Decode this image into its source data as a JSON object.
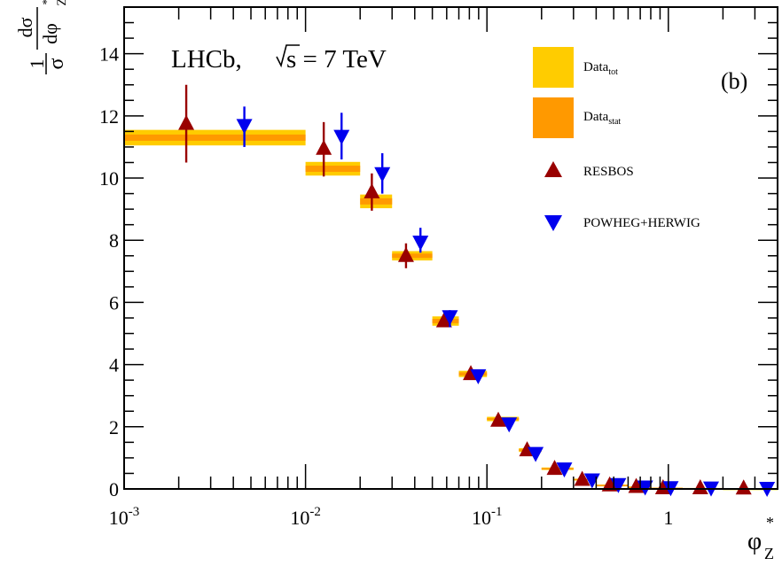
{
  "chart_data": {
    "type": "scatter",
    "experiment": "LHCb,",
    "sqrt_s_label": "s = 7 TeV",
    "panel_label": "(b)",
    "x_axis": {
      "scale": "log",
      "range": [
        0.001,
        4
      ],
      "tick_labels": [
        {
          "value": 0.001,
          "base": "10",
          "exp": "-3"
        },
        {
          "value": 0.01,
          "base": "10",
          "exp": "-2"
        },
        {
          "value": 0.1,
          "base": "10",
          "exp": "-1"
        },
        {
          "value": 1,
          "base": "1",
          "exp": ""
        }
      ],
      "title": "φ",
      "title_sub": "Z",
      "title_sup": "*"
    },
    "y_axis": {
      "scale": "linear",
      "range": [
        0,
        15.5
      ],
      "ticks": [
        0,
        2,
        4,
        6,
        8,
        10,
        12,
        14
      ],
      "tick_labels": [
        "0",
        "2",
        "4",
        "6",
        "8",
        "10",
        "12",
        "14"
      ],
      "title_frac_num_left": "1",
      "title_frac_den_left": "σ",
      "title_frac_num_right": "dσ",
      "title_frac_den_right": "dφ",
      "title_sub": "Z",
      "title_sup": "*"
    },
    "legend": {
      "position": "top-right",
      "entries": [
        {
          "key": "data_tot",
          "label": "Data",
          "sub": "tot",
          "color": "#ffcc00",
          "marker": "box"
        },
        {
          "key": "data_stat",
          "label": "Data",
          "sub": "stat",
          "color": "#ff9900",
          "marker": "box"
        },
        {
          "key": "resbos",
          "label": "RESBOS",
          "color": "#990000",
          "marker": "triangle-up"
        },
        {
          "key": "powheg",
          "label": "POWHEG+HERWIG",
          "color": "#0000ee",
          "marker": "triangle-down"
        }
      ]
    },
    "data_bins": [
      {
        "xlo": 0.001,
        "xhi": 0.01,
        "y": 11.3,
        "tot": 0.25,
        "stat": 0.1
      },
      {
        "xlo": 0.01,
        "xhi": 0.02,
        "y": 10.3,
        "tot": 0.22,
        "stat": 0.1
      },
      {
        "xlo": 0.02,
        "xhi": 0.03,
        "y": 9.25,
        "tot": 0.22,
        "stat": 0.1
      },
      {
        "xlo": 0.03,
        "xhi": 0.05,
        "y": 7.5,
        "tot": 0.15,
        "stat": 0.07
      },
      {
        "xlo": 0.05,
        "xhi": 0.07,
        "y": 5.4,
        "tot": 0.15,
        "stat": 0.07
      },
      {
        "xlo": 0.07,
        "xhi": 0.1,
        "y": 3.7,
        "tot": 0.1,
        "stat": 0.05
      },
      {
        "xlo": 0.1,
        "xhi": 0.15,
        "y": 2.25,
        "tot": 0.07,
        "stat": 0.03
      },
      {
        "xlo": 0.15,
        "xhi": 0.2,
        "y": 1.25,
        "tot": 0.06,
        "stat": 0.03
      },
      {
        "xlo": 0.2,
        "xhi": 0.3,
        "y": 0.65,
        "tot": 0.04,
        "stat": 0.02
      },
      {
        "xlo": 0.3,
        "xhi": 0.4,
        "y": 0.3,
        "tot": 0.03,
        "stat": 0.02
      },
      {
        "xlo": 0.4,
        "xhi": 0.6,
        "y": 0.12,
        "tot": 0.02,
        "stat": 0.01
      },
      {
        "xlo": 0.6,
        "xhi": 0.8,
        "y": 0.06,
        "tot": 0.02,
        "stat": 0.01
      },
      {
        "xlo": 0.8,
        "xhi": 1.2,
        "y": 0.03,
        "tot": 0.01,
        "stat": 0.01
      },
      {
        "xlo": 1.2,
        "xhi": 2.0,
        "y": 0.02,
        "tot": 0.01,
        "stat": 0.01
      },
      {
        "xlo": 2.0,
        "xhi": 4.0,
        "y": 0.01,
        "tot": 0.01,
        "stat": 0.01
      }
    ],
    "series": [
      {
        "key": "resbos",
        "points": [
          {
            "x": 0.0022,
            "y": 11.75,
            "lo": 10.5,
            "hi": 13.0
          },
          {
            "x": 0.0126,
            "y": 10.95,
            "lo": 10.05,
            "hi": 11.8
          },
          {
            "x": 0.0232,
            "y": 9.55,
            "lo": 8.95,
            "hi": 10.15
          },
          {
            "x": 0.0358,
            "y": 7.5,
            "lo": 7.1,
            "hi": 7.9
          },
          {
            "x": 0.058,
            "y": 5.4
          },
          {
            "x": 0.0815,
            "y": 3.7
          },
          {
            "x": 0.1155,
            "y": 2.2
          },
          {
            "x": 0.1665,
            "y": 1.25
          },
          {
            "x": 0.236,
            "y": 0.65
          },
          {
            "x": 0.335,
            "y": 0.3
          },
          {
            "x": 0.475,
            "y": 0.12
          },
          {
            "x": 0.665,
            "y": 0.07
          },
          {
            "x": 0.935,
            "y": 0.03
          },
          {
            "x": 1.5,
            "y": 0.03
          },
          {
            "x": 2.6,
            "y": 0.02
          }
        ]
      },
      {
        "key": "powheg",
        "points": [
          {
            "x": 0.0046,
            "y": 11.7,
            "lo": 11.0,
            "hi": 12.3
          },
          {
            "x": 0.0158,
            "y": 11.35,
            "lo": 10.6,
            "hi": 12.1
          },
          {
            "x": 0.0265,
            "y": 10.15,
            "lo": 9.5,
            "hi": 10.8
          },
          {
            "x": 0.043,
            "y": 7.95,
            "lo": 7.6,
            "hi": 8.4
          },
          {
            "x": 0.0625,
            "y": 5.55,
            "lo": 5.2,
            "hi": 5.75
          },
          {
            "x": 0.0895,
            "y": 3.65
          },
          {
            "x": 0.1325,
            "y": 2.1
          },
          {
            "x": 0.1855,
            "y": 1.15
          },
          {
            "x": 0.267,
            "y": 0.65
          },
          {
            "x": 0.38,
            "y": 0.3
          },
          {
            "x": 0.53,
            "y": 0.15
          },
          {
            "x": 0.745,
            "y": 0.07
          },
          {
            "x": 1.03,
            "y": 0.05
          },
          {
            "x": 1.72,
            "y": 0.04
          },
          {
            "x": 3.5,
            "y": 0.03
          }
        ]
      }
    ]
  }
}
